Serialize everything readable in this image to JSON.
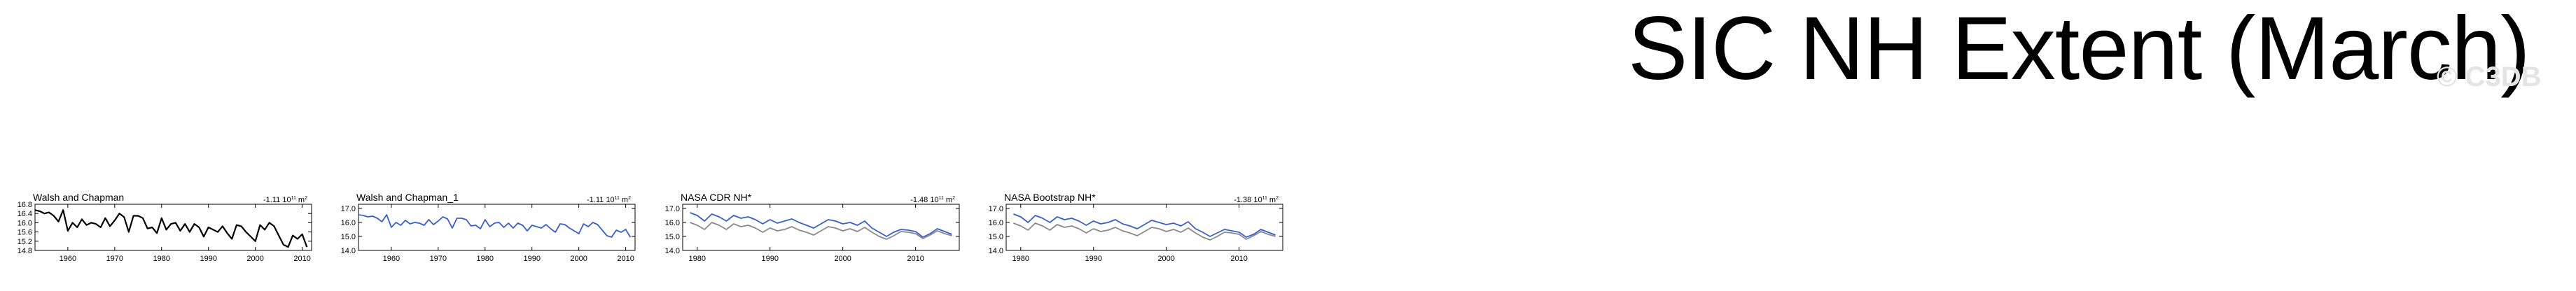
{
  "page": {
    "title": "SIC NH Extent (March)",
    "watermark": "© C3DB"
  },
  "colors": {
    "black_series": "#000000",
    "blue_series": "#3a5fc8",
    "gray_series": "#8a8a8a",
    "axis": "#000000"
  },
  "chart_data": [
    {
      "type": "line",
      "title": "Walsh and Chapman",
      "trend_label": "-1.11 10",
      "trend_exp": "11",
      "trend_unit": "m",
      "trend_unit_exp": "2",
      "xlim": [
        1953,
        2012
      ],
      "ylim": [
        14.8,
        16.8
      ],
      "xticks": [
        1960,
        1970,
        1980,
        1990,
        2000,
        2010
      ],
      "yticks": [
        14.8,
        15.2,
        15.6,
        16.0,
        16.4,
        16.8
      ],
      "ytick_labels": [
        "14.8",
        "15.2",
        "15.6",
        "16.0",
        "16.4",
        "16.8"
      ],
      "series": [
        {
          "color": "#000000",
          "x": [
            1953,
            1954,
            1955,
            1956,
            1957,
            1958,
            1959,
            1960,
            1961,
            1962,
            1963,
            1964,
            1965,
            1966,
            1967,
            1968,
            1969,
            1970,
            1971,
            1972,
            1973,
            1974,
            1975,
            1976,
            1977,
            1978,
            1979,
            1980,
            1981,
            1982,
            1983,
            1984,
            1985,
            1986,
            1987,
            1988,
            1989,
            1990,
            1991,
            1992,
            1993,
            1994,
            1995,
            1996,
            1997,
            1998,
            1999,
            2000,
            2001,
            2002,
            2003,
            2004,
            2005,
            2006,
            2007,
            2008,
            2009,
            2010,
            2011
          ],
          "y": [
            16.55,
            16.5,
            16.4,
            16.45,
            16.3,
            16.05,
            16.55,
            15.65,
            16.0,
            15.8,
            16.15,
            15.9,
            16.0,
            15.95,
            15.8,
            16.2,
            15.85,
            16.1,
            16.4,
            16.25,
            15.6,
            16.3,
            16.3,
            16.2,
            15.75,
            15.8,
            15.55,
            16.2,
            15.7,
            15.95,
            16.0,
            15.65,
            15.95,
            15.6,
            15.95,
            15.8,
            15.4,
            15.8,
            15.7,
            15.6,
            15.85,
            15.55,
            15.3,
            15.9,
            15.85,
            15.6,
            15.4,
            15.2,
            15.9,
            15.7,
            16.0,
            15.85,
            15.45,
            15.05,
            14.95,
            15.45,
            15.3,
            15.5,
            14.95
          ]
        }
      ]
    },
    {
      "type": "line",
      "title": "Walsh and Chapman_1",
      "trend_label": "-1.11 10",
      "trend_exp": "11",
      "trend_unit": "m",
      "trend_unit_exp": "2",
      "xlim": [
        1953,
        2012
      ],
      "ylim": [
        14.0,
        17.3
      ],
      "xticks": [
        1960,
        1970,
        1980,
        1990,
        2000,
        2010
      ],
      "yticks": [
        14.0,
        15.0,
        16.0,
        17.0
      ],
      "ytick_labels": [
        "14.0",
        "15.0",
        "16.0",
        "17.0"
      ],
      "series": [
        {
          "color": "#3a5fc8",
          "x": [
            1953,
            1954,
            1955,
            1956,
            1957,
            1958,
            1959,
            1960,
            1961,
            1962,
            1963,
            1964,
            1965,
            1966,
            1967,
            1968,
            1969,
            1970,
            1971,
            1972,
            1973,
            1974,
            1975,
            1976,
            1977,
            1978,
            1979,
            1980,
            1981,
            1982,
            1983,
            1984,
            1985,
            1986,
            1987,
            1988,
            1989,
            1990,
            1991,
            1992,
            1993,
            1994,
            1995,
            1996,
            1997,
            1998,
            1999,
            2000,
            2001,
            2002,
            2003,
            2004,
            2005,
            2006,
            2007,
            2008,
            2009,
            2010,
            2011
          ],
          "y": [
            16.55,
            16.5,
            16.4,
            16.45,
            16.3,
            16.05,
            16.55,
            15.65,
            16.0,
            15.8,
            16.15,
            15.9,
            16.0,
            15.95,
            15.8,
            16.2,
            15.85,
            16.1,
            16.4,
            16.25,
            15.6,
            16.3,
            16.3,
            16.2,
            15.75,
            15.8,
            15.55,
            16.2,
            15.7,
            15.95,
            16.0,
            15.65,
            15.95,
            15.6,
            15.95,
            15.8,
            15.4,
            15.8,
            15.7,
            15.6,
            15.85,
            15.55,
            15.3,
            15.9,
            15.85,
            15.6,
            15.4,
            15.2,
            15.9,
            15.7,
            16.0,
            15.85,
            15.45,
            15.05,
            14.95,
            15.45,
            15.3,
            15.5,
            14.95
          ]
        }
      ]
    },
    {
      "type": "line",
      "title": "NASA CDR NH*",
      "trend_label": "-1.48 10",
      "trend_exp": "11",
      "trend_unit": "m",
      "trend_unit_exp": "2",
      "xlim": [
        1978,
        2016
      ],
      "ylim": [
        14.0,
        17.3
      ],
      "xticks": [
        1980,
        1990,
        2000,
        2010
      ],
      "yticks": [
        14.0,
        15.0,
        16.0,
        17.0
      ],
      "ytick_labels": [
        "14.0",
        "15.0",
        "16.0",
        "17.0"
      ],
      "series": [
        {
          "color": "#3a5fc8",
          "x": [
            1979,
            1980,
            1981,
            1982,
            1983,
            1984,
            1985,
            1986,
            1987,
            1988,
            1989,
            1990,
            1991,
            1992,
            1993,
            1994,
            1995,
            1996,
            1997,
            1998,
            1999,
            2000,
            2001,
            2002,
            2003,
            2004,
            2005,
            2006,
            2007,
            2008,
            2009,
            2010,
            2011,
            2012,
            2013,
            2014,
            2015
          ],
          "y": [
            16.7,
            16.5,
            16.1,
            16.6,
            16.4,
            16.1,
            16.5,
            16.3,
            16.4,
            16.2,
            15.9,
            16.2,
            15.95,
            16.1,
            16.25,
            16.0,
            15.8,
            15.6,
            15.9,
            16.2,
            16.1,
            15.9,
            16.0,
            15.8,
            16.1,
            15.6,
            15.3,
            15.0,
            15.3,
            15.5,
            15.45,
            15.35,
            14.95,
            15.2,
            15.55,
            15.35,
            15.15
          ]
        },
        {
          "color": "#8a8a8a",
          "x": [
            1979,
            1980,
            1981,
            1982,
            1983,
            1984,
            1985,
            1986,
            1987,
            1988,
            1989,
            1990,
            1991,
            1992,
            1993,
            1994,
            1995,
            1996,
            1997,
            1998,
            1999,
            2000,
            2001,
            2002,
            2003,
            2004,
            2005,
            2006,
            2007,
            2008,
            2009,
            2010,
            2011,
            2012,
            2013,
            2014,
            2015
          ],
          "y": [
            16.0,
            15.8,
            15.5,
            16.0,
            15.8,
            15.5,
            15.9,
            15.7,
            15.8,
            15.6,
            15.3,
            15.6,
            15.4,
            15.5,
            15.7,
            15.45,
            15.3,
            15.1,
            15.4,
            15.7,
            15.6,
            15.4,
            15.55,
            15.35,
            15.65,
            15.3,
            15.0,
            14.8,
            15.05,
            15.35,
            15.3,
            15.2,
            14.85,
            15.1,
            15.4,
            15.2,
            15.05
          ]
        }
      ]
    },
    {
      "type": "line",
      "title": "NASA Bootstrap NH*",
      "trend_label": "-1.38 10",
      "trend_exp": "11",
      "trend_unit": "m",
      "trend_unit_exp": "2",
      "xlim": [
        1978,
        2016
      ],
      "ylim": [
        14.0,
        17.3
      ],
      "xticks": [
        1980,
        1990,
        2000,
        2010
      ],
      "yticks": [
        14.0,
        15.0,
        16.0,
        17.0
      ],
      "ytick_labels": [
        "14.0",
        "15.0",
        "16.0",
        "17.0"
      ],
      "series": [
        {
          "color": "#3a5fc8",
          "x": [
            1979,
            1980,
            1981,
            1982,
            1983,
            1984,
            1985,
            1986,
            1987,
            1988,
            1989,
            1990,
            1991,
            1992,
            1993,
            1994,
            1995,
            1996,
            1997,
            1998,
            1999,
            2000,
            2001,
            2002,
            2003,
            2004,
            2005,
            2006,
            2007,
            2008,
            2009,
            2010,
            2011,
            2012,
            2013,
            2014,
            2015
          ],
          "y": [
            16.6,
            16.4,
            16.0,
            16.5,
            16.3,
            16.0,
            16.4,
            16.2,
            16.3,
            16.1,
            15.8,
            16.1,
            15.9,
            16.0,
            16.2,
            15.9,
            15.75,
            15.55,
            15.85,
            16.15,
            16.0,
            15.85,
            15.95,
            15.75,
            16.05,
            15.55,
            15.3,
            15.0,
            15.25,
            15.5,
            15.4,
            15.3,
            14.95,
            15.15,
            15.5,
            15.3,
            15.1
          ]
        },
        {
          "color": "#8a8a8a",
          "x": [
            1979,
            1980,
            1981,
            1982,
            1983,
            1984,
            1985,
            1986,
            1987,
            1988,
            1989,
            1990,
            1991,
            1992,
            1993,
            1994,
            1995,
            1996,
            1997,
            1998,
            1999,
            2000,
            2001,
            2002,
            2003,
            2004,
            2005,
            2006,
            2007,
            2008,
            2009,
            2010,
            2011,
            2012,
            2013,
            2014,
            2015
          ],
          "y": [
            15.95,
            15.75,
            15.45,
            15.95,
            15.75,
            15.45,
            15.85,
            15.65,
            15.75,
            15.55,
            15.25,
            15.55,
            15.35,
            15.45,
            15.65,
            15.4,
            15.25,
            15.05,
            15.35,
            15.65,
            15.55,
            15.35,
            15.5,
            15.3,
            15.6,
            15.25,
            14.95,
            14.75,
            15.0,
            15.3,
            15.25,
            15.15,
            14.8,
            15.05,
            15.35,
            15.15,
            15.0
          ]
        }
      ]
    }
  ]
}
